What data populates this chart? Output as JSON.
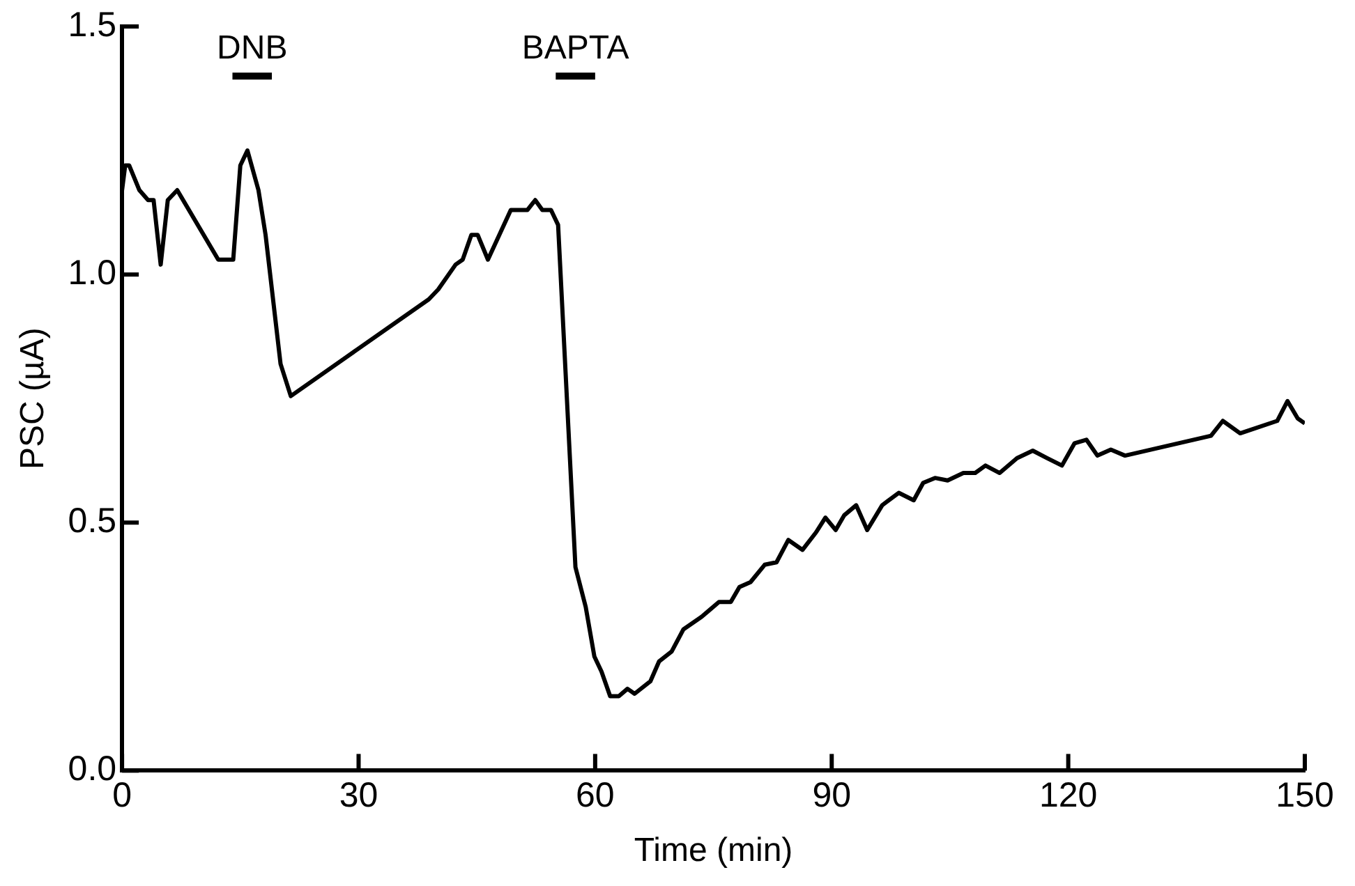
{
  "chart_data": {
    "type": "line",
    "xlabel": "Time (min)",
    "ylabel": "PSC (µA)",
    "xlim": [
      0,
      150
    ],
    "xticks": [
      0,
      30,
      60,
      90,
      120,
      150
    ],
    "ylim": [
      0,
      1.5
    ],
    "yticks": [
      {
        "value": 0,
        "label": "0.0"
      },
      {
        "value": 0.5,
        "label": "0.5"
      },
      {
        "value": 1,
        "label": "1.0"
      },
      {
        "value": 1.5,
        "label": "1.5"
      }
    ],
    "marker": "none",
    "line_style": "solid",
    "series": [
      {
        "color": "#000000",
        "x": [
          0,
          0.4,
          0.9,
          2.2,
          3.3,
          4.0,
          4.9,
          5.8,
          7.0,
          12.2,
          14.1,
          15.0,
          15.9,
          17.3,
          18.2,
          20.1,
          21.4,
          38.9,
          40.1,
          42.3,
          43.2,
          44.3,
          45.1,
          46.4,
          49.3,
          51.4,
          52.4,
          53.3,
          54.4,
          55.3,
          57.5,
          58.8,
          59.9,
          60.8,
          61.9,
          63.0,
          64.1,
          65.0,
          67.0,
          68.1,
          69.7,
          71.2,
          73.5,
          75.7,
          77.2,
          78.3,
          79.7,
          81.5,
          83.0,
          84.5,
          86.3,
          88.0,
          89.2,
          90.5,
          91.6,
          93.1,
          94.5,
          96.4,
          98.5,
          100.4,
          101.6,
          103.1,
          104.7,
          106.7,
          108.2,
          109.5,
          111.3,
          113.5,
          115.5,
          117.3,
          119.2,
          120.8,
          122.3,
          123.7,
          125.4,
          127.2,
          138.1,
          139.6,
          141.8,
          146.5,
          147.8,
          149.1,
          150
        ],
        "values": [
          1.17,
          1.22,
          1.22,
          1.17,
          1.15,
          1.15,
          1.02,
          1.15,
          1.17,
          1.03,
          1.03,
          1.22,
          1.25,
          1.17,
          1.08,
          0.82,
          0.755,
          0.95,
          0.97,
          1.02,
          1.03,
          1.08,
          1.08,
          1.03,
          1.13,
          1.13,
          1.15,
          1.13,
          1.13,
          1.1,
          0.41,
          0.33,
          0.23,
          0.2,
          0.15,
          0.15,
          0.165,
          0.155,
          0.18,
          0.22,
          0.24,
          0.285,
          0.31,
          0.34,
          0.34,
          0.37,
          0.38,
          0.415,
          0.42,
          0.465,
          0.445,
          0.48,
          0.51,
          0.485,
          0.515,
          0.535,
          0.485,
          0.535,
          0.56,
          0.545,
          0.58,
          0.59,
          0.585,
          0.6,
          0.6,
          0.615,
          0.6,
          0.63,
          0.645,
          0.63,
          0.615,
          0.66,
          0.667,
          0.635,
          0.647,
          0.635,
          0.675,
          0.705,
          0.68,
          0.705,
          0.745,
          0.71,
          0.7
        ]
      },
      {
        "name": "DNB",
        "color": "#000000",
        "x": [
          14,
          19
        ],
        "values": [
          1.4,
          1.4
        ]
      },
      {
        "name": "BAPTA",
        "color": "#000000",
        "x": [
          55,
          60
        ],
        "values": [
          1.4,
          1.4
        ]
      }
    ]
  }
}
